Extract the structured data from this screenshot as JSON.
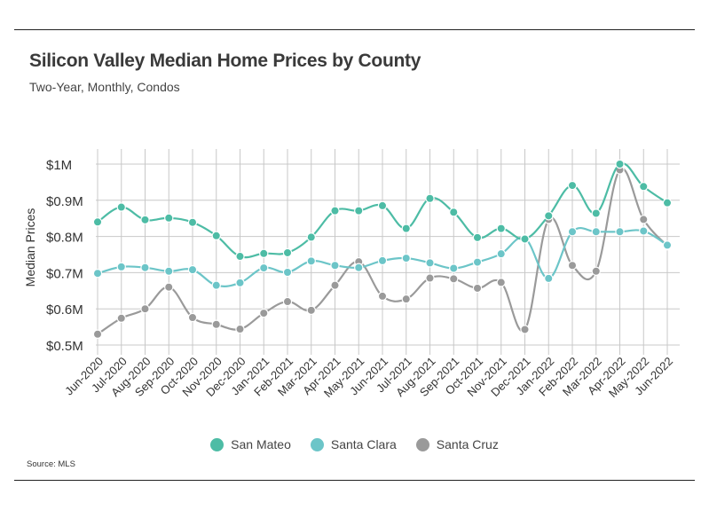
{
  "header": {
    "title": "Silicon Valley Median Home Prices by County",
    "subtitle": "Two-Year, Monthly, Condos"
  },
  "footer": {
    "source": "Source:  MLS"
  },
  "colors": {
    "San Mateo": "#4dbca5",
    "Santa Clara": "#6cc5c8",
    "Santa Cruz": "#9a9a9a",
    "grid": "#c8c8c8"
  },
  "chart_data": {
    "type": "line",
    "title": "Silicon Valley Median Home Prices by County",
    "subtitle": "Two-Year, Monthly, Condos",
    "xlabel": "",
    "ylabel": "Median Prices",
    "ylim": [
      0.5,
      1.0
    ],
    "yticks": [
      1.0,
      0.9,
      0.8,
      0.7,
      0.6,
      0.5
    ],
    "ytick_labels": [
      "$1M",
      "$0.9M",
      "$0.8M",
      "$0.7M",
      "$0.6M",
      "$0.5M"
    ],
    "grid": true,
    "legend": "bottom-center",
    "categories": [
      "Jun-2020",
      "Jul-2020",
      "Aug-2020",
      "Sep-2020",
      "Oct-2020",
      "Nov-2020",
      "Dec-2020",
      "Jan-2021",
      "Feb-2021",
      "Mar-2021",
      "Apr-2021",
      "May-2021",
      "Jun-2021",
      "Jul-2021",
      "Aug-2021",
      "Sep-2021",
      "Oct-2021",
      "Nov-2021",
      "Dec-2021",
      "Jan-2022",
      "Feb-2022",
      "Mar-2022",
      "Apr-2022",
      "May-2022",
      "Jun-2022"
    ],
    "series": [
      {
        "name": "San Mateo",
        "values": [
          0.84,
          0.881,
          0.846,
          0.851,
          0.839,
          0.802,
          0.745,
          0.753,
          0.755,
          0.798,
          0.871,
          0.871,
          0.885,
          0.822,
          0.905,
          0.867,
          0.797,
          0.822,
          0.793,
          0.857,
          0.941,
          0.864,
          1.0,
          0.938,
          0.893
        ]
      },
      {
        "name": "Santa Clara",
        "values": [
          0.698,
          0.716,
          0.714,
          0.704,
          0.708,
          0.665,
          0.672,
          0.713,
          0.701,
          0.732,
          0.72,
          0.714,
          0.733,
          0.74,
          0.727,
          0.712,
          0.729,
          0.752,
          0.795,
          0.684,
          0.813,
          0.813,
          0.813,
          0.815,
          0.776
        ]
      },
      {
        "name": "Santa Cruz",
        "values": [
          0.53,
          0.574,
          0.6,
          0.66,
          0.576,
          0.557,
          0.544,
          0.588,
          0.62,
          0.596,
          0.665,
          0.73,
          0.635,
          0.627,
          0.685,
          0.683,
          0.657,
          0.673,
          0.543,
          0.847,
          0.72,
          0.704,
          0.984,
          0.847,
          0.774
        ]
      }
    ]
  }
}
